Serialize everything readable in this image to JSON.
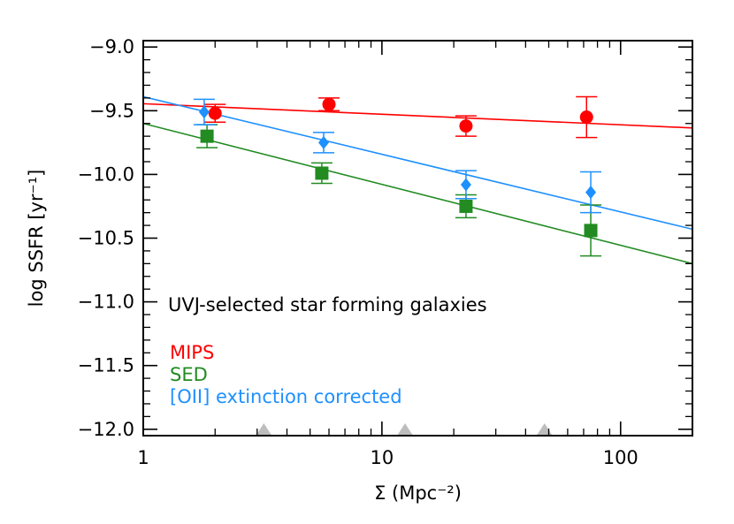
{
  "chart_data": {
    "type": "scatter",
    "title": "",
    "xlabel": "Σ (Mpc⁻²)",
    "ylabel": "log SSFR [yr⁻¹]",
    "xscale": "log",
    "xlim": [
      1,
      200
    ],
    "ylim": [
      -12.05,
      -8.95
    ],
    "xticks": [
      1,
      10,
      100
    ],
    "xtick_labels": [
      "1",
      "10",
      "100"
    ],
    "yticks": [
      -12.0,
      -11.5,
      -11.0,
      -10.5,
      -10.0,
      -9.5,
      -9.0
    ],
    "ytick_labels": [
      "−12.0",
      "−11.5",
      "−11.0",
      "−10.5",
      "−10.0",
      "−9.5",
      "−9.0"
    ],
    "annotation": "UVJ-selected star forming galaxies",
    "markers_at_bottom": [
      3.2,
      12.5,
      48
    ],
    "series": [
      {
        "name": "MIPS",
        "color": "#ff0000",
        "marker": "circle",
        "x": [
          2.0,
          6.0,
          22.5,
          72
        ],
        "y": [
          -9.52,
          -9.45,
          -9.62,
          -9.55
        ],
        "yerr_low": [
          0.07,
          0.05,
          0.08,
          0.16
        ],
        "yerr_high": [
          0.07,
          0.05,
          0.08,
          0.16
        ],
        "fit": {
          "x": [
            1,
            200
          ],
          "y": [
            -9.445,
            -9.635
          ]
        }
      },
      {
        "name": "SED",
        "color": "#228b22",
        "marker": "square",
        "x": [
          1.85,
          5.6,
          22.5,
          75
        ],
        "y": [
          -9.7,
          -9.99,
          -10.25,
          -10.44
        ],
        "yerr_low": [
          0.09,
          0.08,
          0.09,
          0.2
        ],
        "yerr_high": [
          0.09,
          0.08,
          0.09,
          0.2
        ],
        "fit": {
          "x": [
            1,
            200
          ],
          "y": [
            -9.6,
            -10.7
          ]
        }
      },
      {
        "name": "[OII] extinction corrected",
        "color": "#1e90ff",
        "marker": "diamond",
        "x": [
          1.8,
          5.7,
          22.5,
          75
        ],
        "y": [
          -9.51,
          -9.75,
          -10.08,
          -10.14
        ],
        "yerr_low": [
          0.1,
          0.08,
          0.11,
          0.16
        ],
        "yerr_high": [
          0.1,
          0.08,
          0.11,
          0.16
        ],
        "fit": {
          "x": [
            1,
            200
          ],
          "y": [
            -9.39,
            -10.43
          ]
        }
      }
    ],
    "legend": {
      "placement": "bottom-left",
      "entries": [
        "MIPS",
        "SED",
        "[OII] extinction corrected"
      ]
    }
  }
}
